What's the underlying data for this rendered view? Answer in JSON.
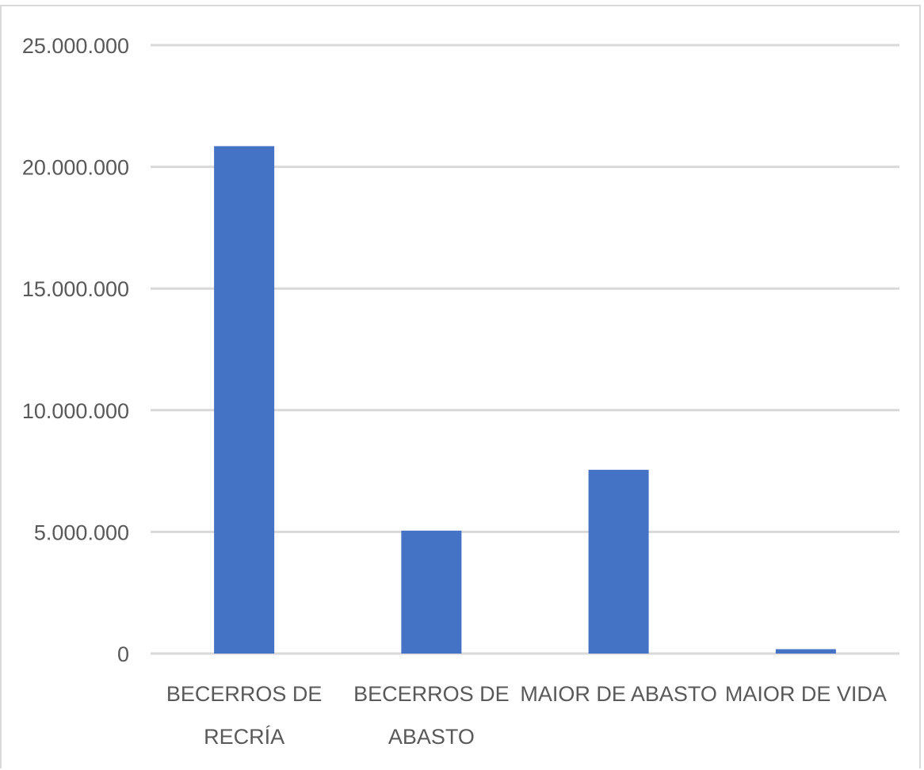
{
  "chart_data": {
    "type": "bar",
    "title": "",
    "xlabel": "",
    "ylabel": "",
    "categories": [
      [
        "BECERROS DE",
        "RECRÍA"
      ],
      [
        "BECERROS DE",
        "ABASTO"
      ],
      [
        "MAIOR DE ABASTO"
      ],
      [
        "MAIOR DE VIDA"
      ]
    ],
    "values": [
      20850000,
      5050000,
      7550000,
      180000
    ],
    "ylim": [
      0,
      25000000
    ],
    "yticks": [
      0,
      5000000,
      10000000,
      15000000,
      20000000,
      25000000
    ],
    "ytick_labels": [
      "0",
      "5.000.000",
      "10.000.000",
      "15.000.000",
      "20.000.000",
      "25.000.000"
    ],
    "grid": true,
    "legend": "none",
    "colors": {
      "bar": "#4472C4",
      "grid": "#d9d9d9",
      "text": "#595959"
    }
  }
}
